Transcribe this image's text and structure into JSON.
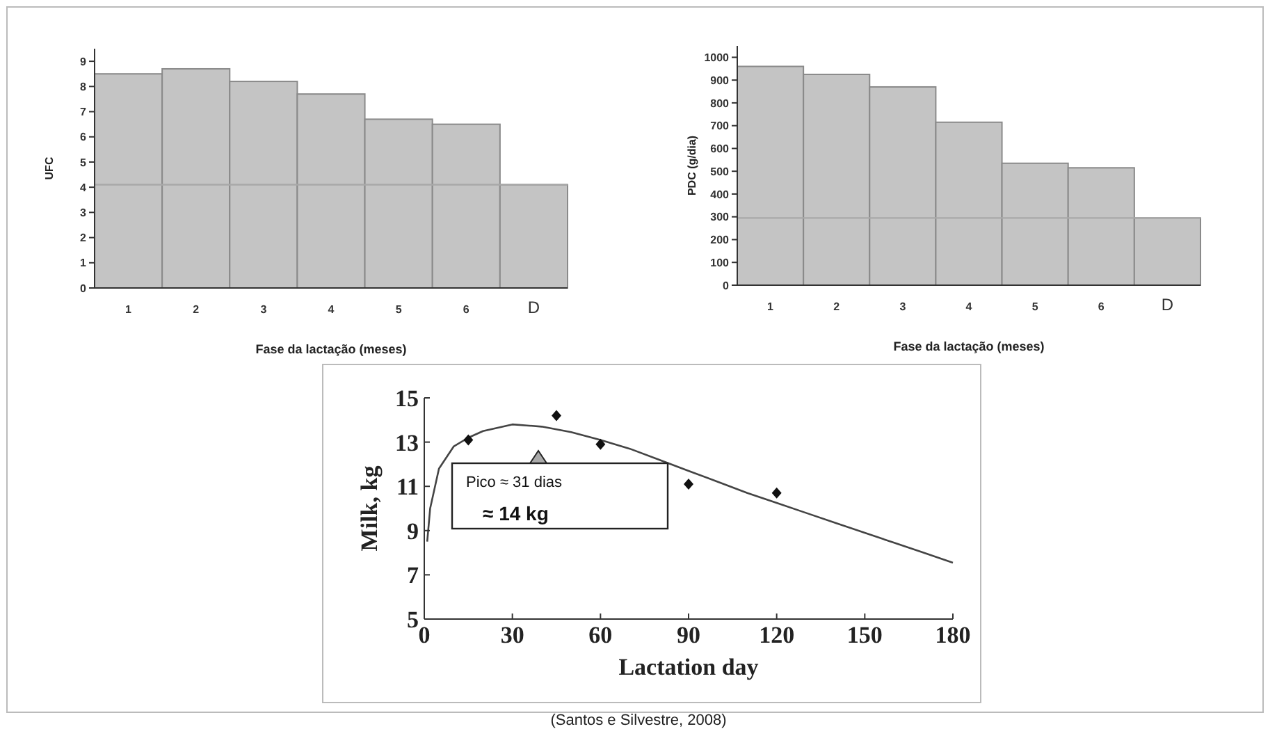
{
  "chart_data": [
    {
      "type": "bar",
      "categories": [
        "1",
        "2",
        "3",
        "4",
        "5",
        "6",
        "D"
      ],
      "values": [
        8.5,
        8.7,
        8.2,
        7.7,
        6.7,
        6.5,
        4.1
      ],
      "color": "#c4c4c4",
      "ylabel": "UFC",
      "xlabel": "Fase da lactação (meses)",
      "ylim": [
        0,
        9.5
      ],
      "yticks": [
        0,
        1,
        2,
        3,
        4,
        5,
        6,
        7,
        8,
        9
      ],
      "ref_lines": [
        {
          "axis": "y",
          "value": 4.1,
          "color": "#a8a8a8"
        }
      ]
    },
    {
      "type": "bar",
      "categories": [
        "1",
        "2",
        "3",
        "4",
        "5",
        "6",
        "D"
      ],
      "values": [
        960,
        925,
        870,
        715,
        535,
        515,
        295
      ],
      "color": "#c4c4c4",
      "ylabel": "PDC (g/dia)",
      "xlabel": "Fase da lactação (meses)",
      "ylim": [
        0,
        1050
      ],
      "yticks": [
        0,
        100,
        200,
        300,
        400,
        500,
        600,
        700,
        800,
        900,
        1000
      ],
      "ref_lines": [
        {
          "axis": "y",
          "value": 295,
          "color": "#a8a8a8"
        }
      ]
    },
    {
      "type": "line",
      "xlabel": "Lactation day",
      "ylabel": "Milk, kg",
      "xlim": [
        0,
        180
      ],
      "xticks": [
        0,
        30,
        60,
        90,
        120,
        150,
        180
      ],
      "ylim": [
        5,
        15
      ],
      "yticks": [
        5,
        7,
        9,
        11,
        13,
        15
      ],
      "series": [
        {
          "type": "line",
          "color": "#444444",
          "marker": "none",
          "x": [
            1,
            2,
            5,
            10,
            15,
            20,
            30,
            40,
            50,
            60,
            70,
            80,
            90,
            100,
            110,
            120,
            130,
            140,
            150,
            160,
            170,
            180
          ],
          "values": [
            8.5,
            10,
            11.8,
            12.8,
            13.2,
            13.5,
            13.8,
            13.7,
            13.45,
            13.1,
            12.7,
            12.2,
            11.7,
            11.2,
            10.7,
            10.25,
            9.8,
            9.35,
            8.9,
            8.45,
            8.0,
            7.55
          ]
        },
        {
          "type": "scatter",
          "color": "#111111",
          "marker": "diamond",
          "x": [
            15,
            45,
            60,
            90,
            120
          ],
          "values": [
            13.1,
            14.2,
            12.9,
            11.1,
            10.7
          ]
        }
      ],
      "annotations": [
        "Pico ≈ 31 dias",
        "≈ 14 kg",
        "(Santos e Silvestre, 2008)"
      ]
    }
  ]
}
